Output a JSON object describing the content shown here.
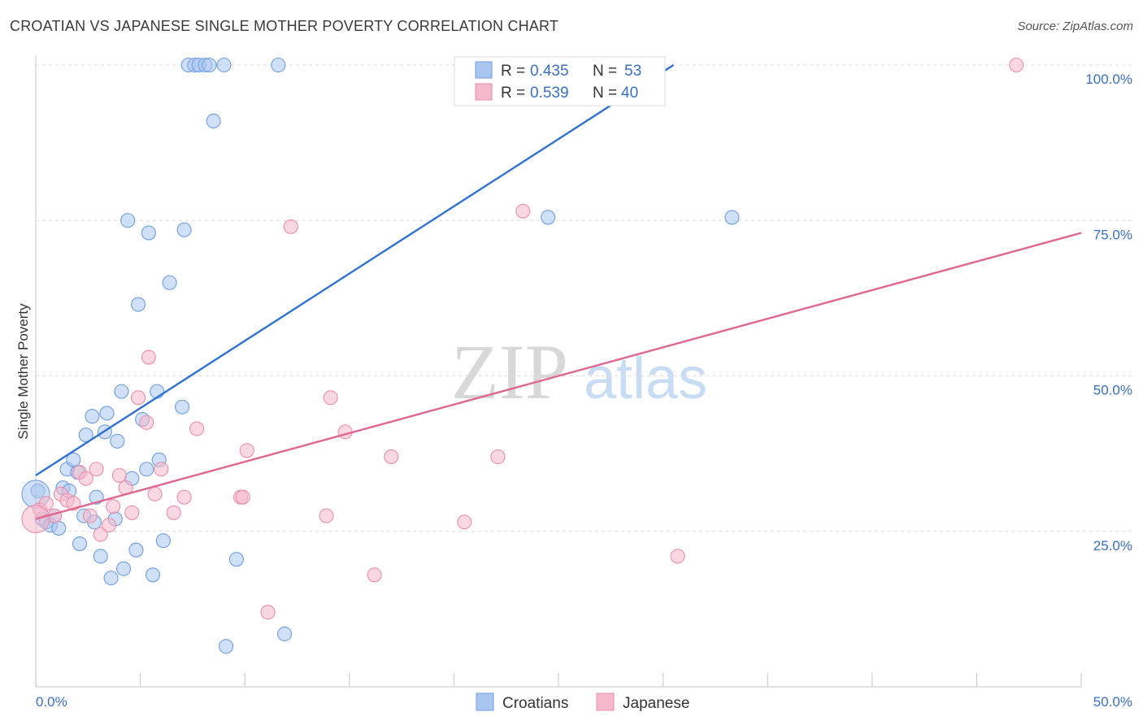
{
  "title": "CROATIAN VS JAPANESE SINGLE MOTHER POVERTY CORRELATION CHART",
  "source": "Source: ZipAtlas.com",
  "watermark": {
    "zip": "ZIP",
    "atlas": "atlas"
  },
  "legend_top": [
    {
      "r_label": "R =",
      "r_value": "0.435",
      "n_label": "N =",
      "n_value": "53"
    },
    {
      "r_label": "R =",
      "r_value": "0.539",
      "n_label": "N =",
      "n_value": "40"
    }
  ],
  "legend_bottom": [
    "Croatians",
    "Japanese"
  ],
  "colors": {
    "croatians_fill": "#a9c6f0",
    "croatians_stroke": "#6f9ee0",
    "croatians_line": "#2f72cf",
    "japanese_fill": "#f5b8cb",
    "japanese_stroke": "#eb8fac",
    "japanese_line": "#e06890",
    "axis_text": "#3a6fc4",
    "grid": "#dddddd"
  },
  "chart_data": {
    "type": "scatter",
    "title": "CROATIAN VS JAPANESE SINGLE MOTHER POVERTY CORRELATION CHART",
    "xlabel": "",
    "ylabel": "Single Mother Poverty",
    "xlim": [
      0,
      50
    ],
    "ylim": [
      0,
      100
    ],
    "x_tick_labels": [
      "0.0%",
      "50.0%"
    ],
    "y_tick_labels": [
      "25.0%",
      "50.0%",
      "75.0%",
      "100.0%"
    ],
    "y_ticks": [
      25,
      50,
      75,
      100
    ],
    "grid": true,
    "series": [
      {
        "name": "Croatians",
        "r": 0.435,
        "n": 53,
        "trend": [
          [
            0,
            34.0
          ],
          [
            30.5,
            100
          ]
        ],
        "points": [
          [
            0.1,
            31.5
          ],
          [
            0.3,
            27.0
          ],
          [
            0.5,
            26.5
          ],
          [
            0.7,
            26.0
          ],
          [
            0.9,
            27.5
          ],
          [
            1.1,
            25.5
          ],
          [
            1.3,
            32.0
          ],
          [
            1.5,
            35.0
          ],
          [
            1.6,
            31.5
          ],
          [
            1.8,
            36.5
          ],
          [
            2.0,
            34.5
          ],
          [
            2.1,
            23.0
          ],
          [
            2.3,
            27.5
          ],
          [
            2.4,
            40.5
          ],
          [
            2.7,
            43.5
          ],
          [
            2.8,
            26.5
          ],
          [
            2.9,
            30.5
          ],
          [
            3.1,
            21.0
          ],
          [
            3.3,
            41.0
          ],
          [
            3.4,
            44.0
          ],
          [
            3.6,
            17.5
          ],
          [
            3.8,
            27.0
          ],
          [
            3.9,
            39.5
          ],
          [
            4.1,
            47.5
          ],
          [
            4.2,
            19.0
          ],
          [
            4.4,
            75.0
          ],
          [
            4.6,
            33.5
          ],
          [
            4.8,
            22.0
          ],
          [
            4.9,
            61.5
          ],
          [
            5.1,
            43.0
          ],
          [
            5.3,
            35.0
          ],
          [
            5.4,
            73.0
          ],
          [
            5.6,
            18.0
          ],
          [
            5.8,
            47.5
          ],
          [
            5.9,
            36.5
          ],
          [
            6.1,
            23.5
          ],
          [
            6.4,
            65.0
          ],
          [
            7.0,
            45.0
          ],
          [
            7.1,
            73.5
          ],
          [
            7.3,
            100
          ],
          [
            7.6,
            100
          ],
          [
            7.8,
            100
          ],
          [
            8.1,
            100
          ],
          [
            8.3,
            100
          ],
          [
            8.5,
            91.0
          ],
          [
            9.0,
            100
          ],
          [
            9.6,
            20.5
          ],
          [
            9.1,
            6.5
          ],
          [
            11.6,
            100
          ],
          [
            11.9,
            8.5
          ],
          [
            24.5,
            75.5
          ],
          [
            33.3,
            75.5
          ],
          [
            0.0,
            31.0
          ]
        ]
      },
      {
        "name": "Japanese",
        "r": 0.539,
        "n": 40,
        "trend": [
          [
            0,
            27.0
          ],
          [
            50,
            73.0
          ]
        ],
        "points": [
          [
            0.2,
            28.5
          ],
          [
            0.5,
            29.5
          ],
          [
            0.9,
            27.5
          ],
          [
            1.2,
            31.0
          ],
          [
            1.5,
            30.0
          ],
          [
            1.8,
            29.5
          ],
          [
            2.1,
            34.5
          ],
          [
            2.4,
            33.5
          ],
          [
            2.6,
            27.5
          ],
          [
            2.9,
            35.0
          ],
          [
            3.1,
            24.5
          ],
          [
            3.5,
            26.0
          ],
          [
            3.7,
            29.0
          ],
          [
            4.0,
            34.0
          ],
          [
            4.3,
            32.0
          ],
          [
            4.6,
            28.0
          ],
          [
            4.9,
            46.5
          ],
          [
            5.3,
            42.5
          ],
          [
            5.4,
            53.0
          ],
          [
            5.7,
            31.0
          ],
          [
            6.0,
            35.0
          ],
          [
            6.6,
            28.0
          ],
          [
            7.1,
            30.5
          ],
          [
            7.7,
            41.5
          ],
          [
            9.8,
            30.5
          ],
          [
            9.9,
            30.5
          ],
          [
            10.1,
            38.0
          ],
          [
            11.1,
            12.0
          ],
          [
            12.2,
            74.0
          ],
          [
            13.9,
            27.5
          ],
          [
            14.1,
            46.5
          ],
          [
            14.8,
            41.0
          ],
          [
            16.2,
            18.0
          ],
          [
            17.0,
            37.0
          ],
          [
            20.5,
            26.5
          ],
          [
            22.1,
            37.0
          ],
          [
            23.3,
            76.5
          ],
          [
            30.7,
            21.0
          ],
          [
            46.9,
            100
          ],
          [
            0.0,
            27.0
          ]
        ]
      }
    ]
  }
}
